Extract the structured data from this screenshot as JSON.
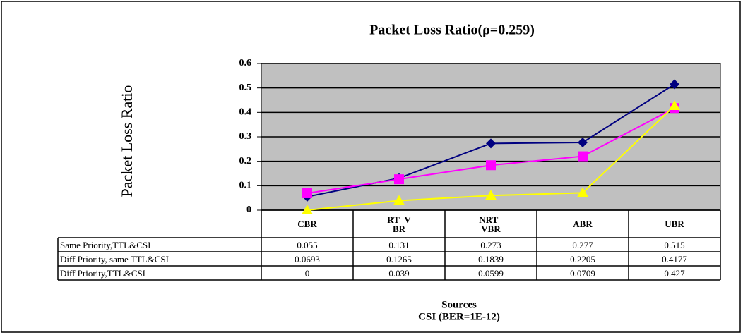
{
  "chart_data": {
    "type": "line",
    "title": "Packet Loss Ratio(ρ=0.259)",
    "y_label": "Packet Loss Ratio",
    "x_label": "Sources",
    "note": "CSI (BER=1E-12)",
    "categories": [
      "CBR",
      "RT_V BR",
      "NRT_ VBR",
      "ABR",
      "UBR"
    ],
    "series": [
      {
        "name": "Same Priority,TTL&CSI",
        "color": "#000080",
        "marker": "diamond",
        "values": [
          0.055,
          0.131,
          0.273,
          0.277,
          0.515
        ]
      },
      {
        "name": "Diff Priority, same TTL&CSI",
        "color": "#ff00ff",
        "marker": "square",
        "values": [
          0.0693,
          0.1265,
          0.1839,
          0.2205,
          0.4177
        ]
      },
      {
        "name": "Diff Priority,TTL&CSI",
        "color": "#ffff00",
        "marker": "triangle",
        "values": [
          0,
          0.039,
          0.0599,
          0.0709,
          0.427
        ]
      }
    ],
    "ylim": [
      0,
      0.6
    ],
    "yticks": [
      0,
      0.1,
      0.2,
      0.3,
      0.4,
      0.5,
      0.6
    ],
    "grid": true,
    "plot_background": "#c0c0c0"
  }
}
